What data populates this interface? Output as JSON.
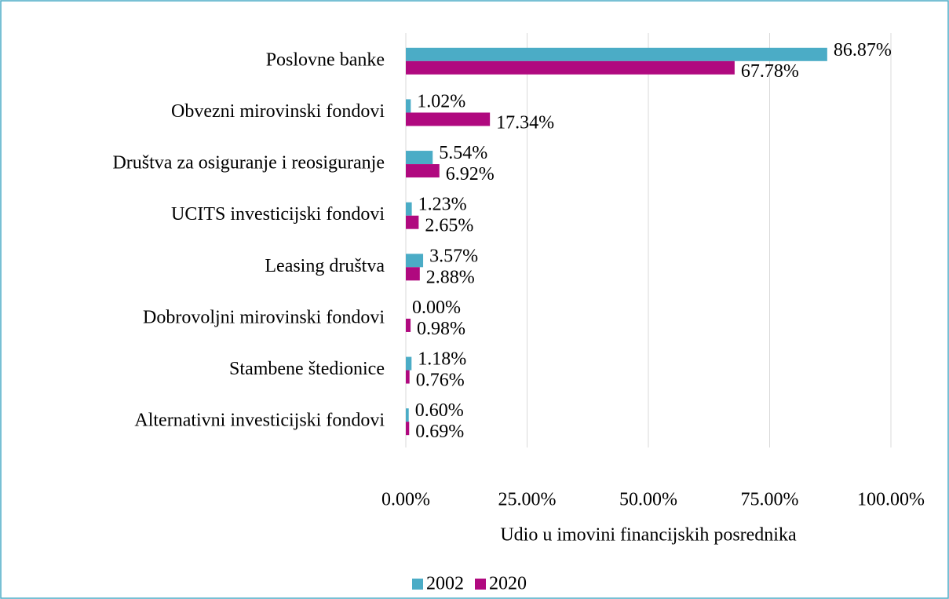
{
  "chart_data": {
    "type": "barh",
    "x_label": "Udio u imovini financijskih posrednika",
    "categories": [
      "Poslovne banke",
      "Obvezni mirovinski fondovi",
      "Društva za osiguranje i reosiguranje",
      "UCITS investicijski fondovi",
      "Leasing društva",
      "Dobrovoljni mirovinski fondovi",
      "Stambene štedionice",
      "Alternativni investicijski fondovi"
    ],
    "series": [
      {
        "name": "2002",
        "color": "#4bacc6",
        "values": [
          86.87,
          1.02,
          5.54,
          1.23,
          3.57,
          0.0,
          1.18,
          0.6
        ],
        "value_labels": [
          "86.87%",
          "1.02%",
          "5.54%",
          "1.23%",
          "3.57%",
          "0.00%",
          "1.18%",
          "0.60%"
        ]
      },
      {
        "name": "2020",
        "color": "#b0097f",
        "values": [
          67.78,
          17.34,
          6.92,
          2.65,
          2.88,
          0.98,
          0.76,
          0.69
        ],
        "value_labels": [
          "67.78%",
          "17.34%",
          "6.92%",
          "2.65%",
          "2.88%",
          "0.98%",
          "0.76%",
          "0.69%"
        ]
      }
    ],
    "xlim": [
      0,
      100
    ],
    "xticks": [
      {
        "value": 0,
        "label": "0.00%"
      },
      {
        "value": 25,
        "label": "25.00%"
      },
      {
        "value": 50,
        "label": "50.00%"
      },
      {
        "value": 75,
        "label": "75.00%"
      },
      {
        "value": 100,
        "label": "100.00%"
      }
    ],
    "grid": true,
    "legend": "bottom"
  }
}
